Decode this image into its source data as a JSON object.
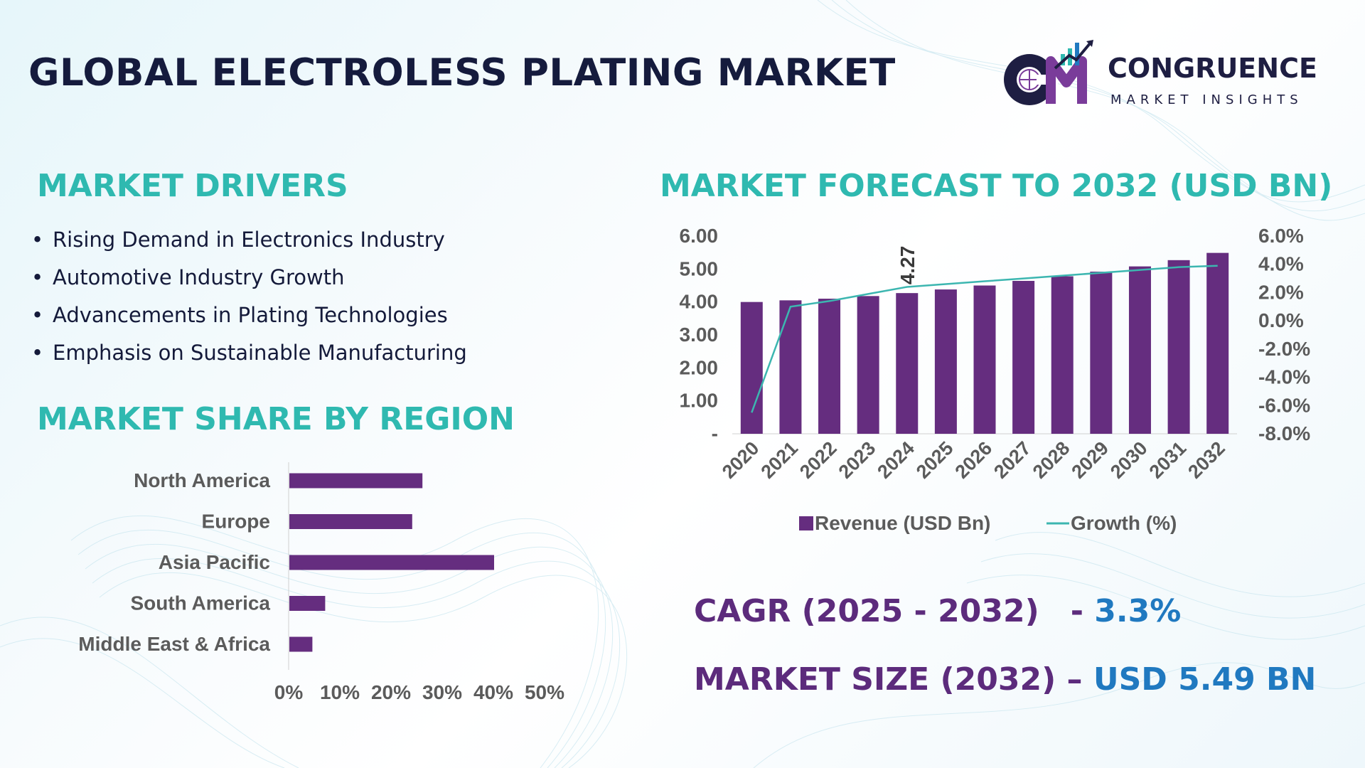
{
  "title": "GLOBAL ELECTROLESS PLATING MARKET",
  "logo": {
    "line1": "CONGRUENCE",
    "line2": "MARKET INSIGHTS",
    "monogram": "CM"
  },
  "drivers": {
    "heading": "MARKET DRIVERS",
    "items": [
      "Rising Demand in Electronics Industry",
      "Automotive Industry Growth",
      "Advancements in Plating Technologies",
      "Emphasis on Sustainable Manufacturing"
    ]
  },
  "region": {
    "heading": "MARKET SHARE BY REGION"
  },
  "forecast": {
    "heading": "MARKET FORECAST TO 2032 (USD BN)"
  },
  "kpis": {
    "cagr_label": "CAGR (2025 - 2032)",
    "cagr_sep": "- ",
    "cagr_value": "3.3%",
    "size_label": "MARKET SIZE (2032)",
    "size_sep": " – ",
    "size_value": "USD 5.49 BN"
  },
  "colors": {
    "bar": "#652d7f",
    "line": "#3cb6b0",
    "heading": "#2fb9b0",
    "title": "#151b3d"
  },
  "chart_data": [
    {
      "type": "bar",
      "orientation": "horizontal",
      "categories": [
        "North America",
        "Europe",
        "Asia Pacific",
        "South America",
        "Middle East & Africa"
      ],
      "values": [
        26,
        24,
        40,
        7,
        4.5
      ],
      "xlim": [
        0,
        50
      ],
      "xticks": [
        "0%",
        "10%",
        "20%",
        "30%",
        "40%",
        "50%"
      ]
    },
    {
      "type": "bar+line",
      "categories": [
        "2020",
        "2021",
        "2022",
        "2023",
        "2024",
        "2025",
        "2026",
        "2027",
        "2028",
        "2029",
        "2030",
        "2031",
        "2032"
      ],
      "series": [
        {
          "name": "Revenue (USD Bn)",
          "type": "bar",
          "axis": "left",
          "values": [
            4.0,
            4.05,
            4.1,
            4.18,
            4.27,
            4.38,
            4.5,
            4.64,
            4.78,
            4.92,
            5.08,
            5.27,
            5.49
          ]
        },
        {
          "name": "Growth (%)",
          "type": "line",
          "axis": "right",
          "values": [
            -6.5,
            1.0,
            1.4,
            1.9,
            2.4,
            2.6,
            2.8,
            3.0,
            3.2,
            3.4,
            3.6,
            3.8,
            3.9
          ]
        }
      ],
      "data_labels": [
        {
          "category": "2024",
          "text": "4.27"
        }
      ],
      "ylim_left": [
        0,
        6
      ],
      "yticks_left": [
        "-",
        "1.00",
        "2.00",
        "3.00",
        "4.00",
        "5.00",
        "6.00"
      ],
      "ylim_right": [
        -8,
        6
      ],
      "yticks_right": [
        "-8.0%",
        "-6.0%",
        "-4.0%",
        "-2.0%",
        "0.0%",
        "2.0%",
        "4.0%",
        "6.0%"
      ],
      "legend": "bottom"
    }
  ]
}
